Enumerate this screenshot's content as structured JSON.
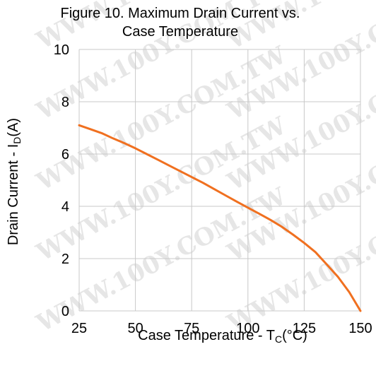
{
  "chart_data": {
    "type": "line",
    "title": [
      "Figure 10. Maximum Drain Current vs.",
      "Case Temperature"
    ],
    "xlabel": {
      "main": "Case Temperature - T",
      "sub": "C",
      "unit": "(°C)"
    },
    "ylabel": {
      "main": "Drain Current - I",
      "sub": "D",
      "unit": "(A)"
    },
    "xlim": [
      25,
      150
    ],
    "ylim": [
      0,
      10
    ],
    "xticks": [
      25,
      50,
      75,
      100,
      125,
      150
    ],
    "yticks": [
      0,
      2,
      4,
      6,
      8,
      10
    ],
    "grid": true,
    "line_color": "#f07020",
    "watermark": "WWW.100Y.COM.TW",
    "series": [
      {
        "x": [
          25,
          30,
          35,
          40,
          45,
          50,
          55,
          60,
          65,
          70,
          75,
          80,
          85,
          90,
          95,
          100,
          105,
          110,
          115,
          120,
          125,
          130,
          135,
          140,
          145,
          150
        ],
        "y": [
          7.1,
          6.95,
          6.8,
          6.6,
          6.42,
          6.22,
          6.0,
          5.78,
          5.56,
          5.34,
          5.12,
          4.9,
          4.66,
          4.42,
          4.18,
          3.95,
          3.72,
          3.48,
          3.22,
          2.92,
          2.6,
          2.25,
          1.78,
          1.3,
          0.72,
          0.0
        ]
      }
    ]
  }
}
